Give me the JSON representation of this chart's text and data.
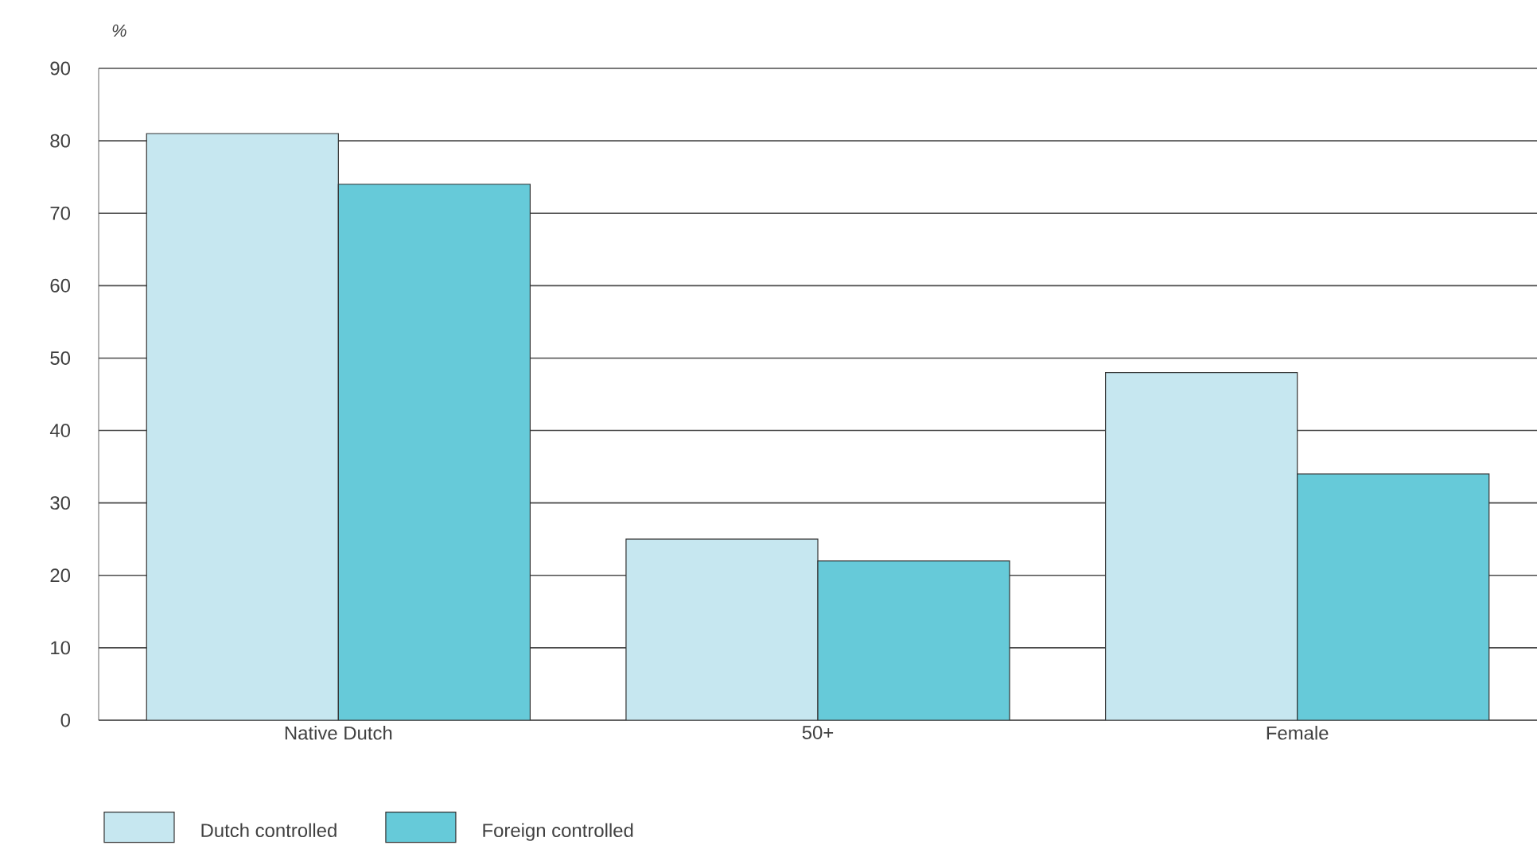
{
  "chart_data": {
    "type": "bar",
    "ylabel": "%",
    "categories": [
      "Native Dutch",
      "50+",
      "Female"
    ],
    "series": [
      {
        "name": "Dutch controlled",
        "color": "#c6e7f0",
        "values": [
          81,
          25,
          48
        ]
      },
      {
        "name": "Foreign controlled",
        "color": "#66cad9",
        "values": [
          74,
          22,
          34
        ]
      }
    ],
    "ylim": [
      0,
      90
    ],
    "yticks": [
      0,
      10,
      20,
      30,
      40,
      50,
      60,
      70,
      80,
      90
    ],
    "grid": "y",
    "legend": "bottom left"
  }
}
